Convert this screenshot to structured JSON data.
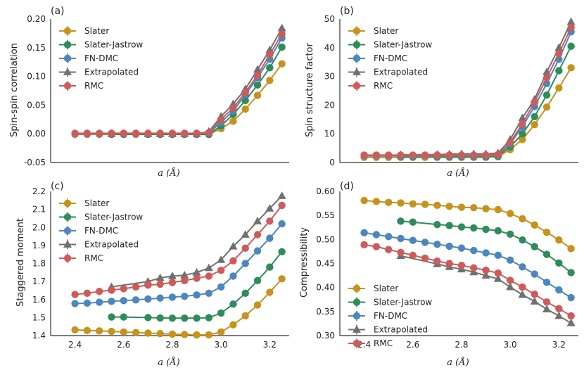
{
  "colors": {
    "Slater": "#c5931c",
    "Slater-Jastrow": "#2e8c5a",
    "FN-DMC": "#4d86be",
    "Extrapolated": "#707070",
    "RMC": "#cf5a5a"
  },
  "chart_data": [
    {
      "id": "a",
      "type": "line",
      "panel_label": "(a)",
      "title": "",
      "xlabel": "a (Å)",
      "ylabel": "Spin-spin correlation",
      "xlim": [
        2.3,
        3.28
      ],
      "ylim": [
        -0.05,
        0.2
      ],
      "xticks": [],
      "yticks": [
        "-0.05",
        "0.00",
        "0.05",
        "0.10",
        "0.15",
        "0.20"
      ],
      "legend": [
        "Slater",
        "Slater-Jastrow",
        "FN-DMC",
        "Extrapolated",
        "RMC"
      ],
      "series": [
        {
          "name": "Slater",
          "x": [
            2.4,
            2.45,
            2.5,
            2.55,
            2.6,
            2.65,
            2.7,
            2.75,
            2.8,
            2.85,
            2.9,
            2.95,
            3.0,
            3.05,
            3.1,
            3.15,
            3.2,
            3.25
          ],
          "y": [
            -0.001,
            -0.001,
            -0.001,
            -0.001,
            -0.001,
            -0.001,
            -0.001,
            -0.001,
            -0.001,
            -0.001,
            -0.001,
            -0.001,
            0.009,
            0.022,
            0.043,
            0.067,
            0.093,
            0.122
          ]
        },
        {
          "name": "Slater-Jastrow",
          "x": [
            2.55,
            2.6,
            2.7,
            2.75,
            2.8,
            2.85,
            2.9,
            2.95,
            3.0,
            3.05,
            3.1,
            3.15,
            3.2,
            3.25
          ],
          "y": [
            -0.001,
            -0.001,
            -0.001,
            -0.001,
            -0.001,
            -0.001,
            -0.001,
            -0.001,
            0.014,
            0.034,
            0.058,
            0.085,
            0.115,
            0.151
          ]
        },
        {
          "name": "FN-DMC",
          "x": [
            2.4,
            2.45,
            2.5,
            2.55,
            2.6,
            2.65,
            2.7,
            2.75,
            2.8,
            2.85,
            2.9,
            2.95,
            3.0,
            3.05,
            3.1,
            3.15,
            3.2,
            3.25
          ],
          "y": [
            0.0,
            0.0,
            0.0,
            0.0,
            0.0,
            0.0,
            0.0,
            0.0,
            0.0,
            0.0,
            0.0,
            0.001,
            0.02,
            0.04,
            0.068,
            0.098,
            0.13,
            0.167
          ]
        },
        {
          "name": "Extrapolated",
          "x": [
            2.55,
            2.7,
            2.75,
            2.8,
            2.85,
            2.9,
            2.95,
            3.0,
            3.05,
            3.1,
            3.15,
            3.2,
            3.25
          ],
          "y": [
            0.0,
            0.0,
            0.0,
            0.0,
            0.0,
            0.0,
            0.004,
            0.03,
            0.052,
            0.078,
            0.112,
            0.146,
            0.184
          ]
        },
        {
          "name": "RMC",
          "x": [
            2.4,
            2.45,
            2.5,
            2.55,
            2.6,
            2.65,
            2.7,
            2.75,
            2.8,
            2.85,
            2.9,
            2.95,
            3.0,
            3.05,
            3.1,
            3.15,
            3.2,
            3.25
          ],
          "y": [
            0.001,
            0.001,
            0.001,
            0.001,
            0.001,
            0.001,
            0.001,
            0.001,
            0.001,
            0.001,
            0.001,
            0.002,
            0.025,
            0.045,
            0.072,
            0.102,
            0.138,
            0.174
          ]
        }
      ]
    },
    {
      "id": "b",
      "type": "line",
      "panel_label": "(b)",
      "title": "",
      "xlabel": "a (Å)",
      "ylabel": "Spin structure factor",
      "xlim": [
        2.3,
        3.28
      ],
      "ylim": [
        0,
        50
      ],
      "xticks": [],
      "yticks": [
        "0",
        "10",
        "20",
        "30",
        "40",
        "50"
      ],
      "legend": [
        "Slater",
        "Slater-Jastrow",
        "FN-DMC",
        "Extrapolated",
        "RMC"
      ],
      "series": [
        {
          "name": "Slater",
          "x": [
            2.4,
            2.45,
            2.5,
            2.55,
            2.6,
            2.65,
            2.7,
            2.75,
            2.8,
            2.85,
            2.9,
            2.95,
            3.0,
            3.05,
            3.1,
            3.15,
            3.2,
            3.25
          ],
          "y": [
            1.8,
            1.8,
            1.8,
            1.8,
            1.8,
            1.8,
            1.8,
            1.8,
            1.8,
            1.8,
            1.8,
            2.0,
            4.5,
            8.0,
            13.2,
            19.3,
            26.0,
            33.0
          ]
        },
        {
          "name": "Slater-Jastrow",
          "x": [
            2.55,
            2.6,
            2.7,
            2.75,
            2.8,
            2.85,
            2.9,
            2.95,
            3.0,
            3.05,
            3.1,
            3.15,
            3.2,
            3.25
          ],
          "y": [
            2.0,
            2.0,
            2.0,
            2.0,
            2.0,
            2.0,
            2.0,
            2.2,
            5.5,
            10.0,
            16.0,
            23.5,
            32.0,
            40.5
          ]
        },
        {
          "name": "FN-DMC",
          "x": [
            2.4,
            2.45,
            2.5,
            2.55,
            2.6,
            2.65,
            2.7,
            2.75,
            2.8,
            2.85,
            2.9,
            2.95,
            3.0,
            3.05,
            3.1,
            3.15,
            3.2,
            3.25
          ],
          "y": [
            2.3,
            2.3,
            2.3,
            2.3,
            2.3,
            2.3,
            2.3,
            2.3,
            2.3,
            2.3,
            2.3,
            2.5,
            6.5,
            12.5,
            19.5,
            27.5,
            36.0,
            45.5
          ]
        },
        {
          "name": "Extrapolated",
          "x": [
            2.55,
            2.7,
            2.75,
            2.8,
            2.85,
            2.9,
            2.95,
            3.0,
            3.05,
            3.1,
            3.15,
            3.2,
            3.25
          ],
          "y": [
            2.7,
            2.8,
            2.9,
            3.0,
            3.0,
            3.0,
            3.3,
            8.0,
            15.5,
            22.0,
            31.5,
            40.0,
            49.0
          ]
        },
        {
          "name": "RMC",
          "x": [
            2.4,
            2.45,
            2.5,
            2.55,
            2.6,
            2.65,
            2.7,
            2.75,
            2.8,
            2.85,
            2.9,
            2.95,
            3.0,
            3.05,
            3.1,
            3.15,
            3.2,
            3.25
          ],
          "y": [
            2.6,
            2.6,
            2.6,
            2.6,
            2.6,
            2.6,
            2.6,
            2.6,
            2.6,
            2.6,
            2.6,
            2.8,
            7.0,
            13.5,
            21.0,
            29.5,
            38.0,
            47.0
          ]
        }
      ]
    },
    {
      "id": "c",
      "type": "line",
      "panel_label": "(c)",
      "title": "",
      "xlabel": "a (Å)",
      "ylabel": "Staggered moment",
      "xlim": [
        2.3,
        3.28
      ],
      "ylim": [
        1.4,
        2.2
      ],
      "xticks": [
        "2.4",
        "2.6",
        "2.8",
        "3.0",
        "3.2"
      ],
      "yticks": [
        "1.4",
        "1.5",
        "1.6",
        "1.7",
        "1.8",
        "1.9",
        "2.0",
        "2.1",
        "2.2"
      ],
      "legend": [
        "Slater",
        "Slater-Jastrow",
        "FN-DMC",
        "Extrapolated",
        "RMC"
      ],
      "series": [
        {
          "name": "Slater",
          "x": [
            2.4,
            2.45,
            2.5,
            2.55,
            2.6,
            2.65,
            2.7,
            2.75,
            2.8,
            2.85,
            2.9,
            2.95,
            3.0,
            3.05,
            3.1,
            3.15,
            3.2,
            3.25
          ],
          "y": [
            1.432,
            1.428,
            1.426,
            1.423,
            1.42,
            1.417,
            1.414,
            1.411,
            1.408,
            1.406,
            1.404,
            1.404,
            1.42,
            1.46,
            1.51,
            1.57,
            1.64,
            1.715
          ]
        },
        {
          "name": "Slater-Jastrow",
          "x": [
            2.55,
            2.6,
            2.7,
            2.75,
            2.8,
            2.85,
            2.9,
            2.95,
            3.0,
            3.05,
            3.1,
            3.15,
            3.2,
            3.25
          ],
          "y": [
            1.503,
            1.503,
            1.5,
            1.498,
            1.497,
            1.497,
            1.497,
            1.499,
            1.525,
            1.575,
            1.635,
            1.705,
            1.78,
            1.865
          ]
        },
        {
          "name": "FN-DMC",
          "x": [
            2.4,
            2.45,
            2.5,
            2.55,
            2.6,
            2.65,
            2.7,
            2.75,
            2.8,
            2.85,
            2.9,
            2.95,
            3.0,
            3.05,
            3.1,
            3.15,
            3.2,
            3.25
          ],
          "y": [
            1.578,
            1.58,
            1.585,
            1.59,
            1.594,
            1.598,
            1.603,
            1.608,
            1.613,
            1.618,
            1.625,
            1.635,
            1.67,
            1.73,
            1.8,
            1.87,
            1.94,
            2.02
          ]
        },
        {
          "name": "Extrapolated",
          "x": [
            2.55,
            2.7,
            2.75,
            2.8,
            2.85,
            2.9,
            2.95,
            3.0,
            3.05,
            3.1,
            3.15,
            3.2,
            3.25
          ],
          "y": [
            1.67,
            1.7,
            1.72,
            1.73,
            1.735,
            1.75,
            1.775,
            1.82,
            1.895,
            1.96,
            2.035,
            2.105,
            2.175
          ]
        },
        {
          "name": "RMC",
          "x": [
            2.4,
            2.45,
            2.5,
            2.55,
            2.6,
            2.65,
            2.7,
            2.75,
            2.8,
            2.85,
            2.9,
            2.95,
            3.0,
            3.05,
            3.1,
            3.15,
            3.2,
            3.25
          ],
          "y": [
            1.628,
            1.635,
            1.645,
            1.652,
            1.66,
            1.67,
            1.68,
            1.685,
            1.695,
            1.705,
            1.718,
            1.73,
            1.762,
            1.815,
            1.885,
            1.96,
            2.035,
            2.122
          ]
        }
      ]
    },
    {
      "id": "d",
      "type": "line",
      "panel_label": "(d)",
      "title": "",
      "xlabel": "a (Å)",
      "ylabel": "Compressibility",
      "xlim": [
        2.3,
        3.28
      ],
      "ylim": [
        0.3,
        0.6
      ],
      "xticks": [
        "2.4",
        "2.6",
        "2.8",
        "3.0",
        "3.2"
      ],
      "yticks": [
        "0.30",
        "0.35",
        "0.40",
        "0.45",
        "0.50",
        "0.55",
        "0.60"
      ],
      "legend": [
        "Slater",
        "Slater-Jastrow",
        "FN-DMC",
        "Extrapolated",
        "RMC"
      ],
      "series": [
        {
          "name": "Slater",
          "x": [
            2.4,
            2.45,
            2.5,
            2.55,
            2.6,
            2.65,
            2.7,
            2.75,
            2.8,
            2.85,
            2.9,
            2.95,
            3.0,
            3.05,
            3.1,
            3.15,
            3.2,
            3.25
          ],
          "y": [
            0.581,
            0.579,
            0.577,
            0.576,
            0.574,
            0.573,
            0.571,
            0.569,
            0.567,
            0.566,
            0.564,
            0.562,
            0.554,
            0.543,
            0.53,
            0.515,
            0.499,
            0.481
          ]
        },
        {
          "name": "Slater-Jastrow",
          "x": [
            2.55,
            2.6,
            2.7,
            2.75,
            2.8,
            2.85,
            2.9,
            2.95,
            3.0,
            3.05,
            3.1,
            3.15,
            3.2,
            3.25
          ],
          "y": [
            0.538,
            0.536,
            0.531,
            0.529,
            0.526,
            0.524,
            0.521,
            0.518,
            0.511,
            0.499,
            0.485,
            0.469,
            0.451,
            0.431
          ]
        },
        {
          "name": "FN-DMC",
          "x": [
            2.4,
            2.45,
            2.5,
            2.55,
            2.6,
            2.65,
            2.7,
            2.75,
            2.8,
            2.85,
            2.9,
            2.95,
            3.0,
            3.05,
            3.1,
            3.15,
            3.2,
            3.25
          ],
          "y": [
            0.514,
            0.51,
            0.506,
            0.502,
            0.498,
            0.494,
            0.49,
            0.486,
            0.482,
            0.477,
            0.472,
            0.467,
            0.457,
            0.443,
            0.428,
            0.411,
            0.395,
            0.379
          ]
        },
        {
          "name": "Extrapolated",
          "x": [
            2.55,
            2.7,
            2.75,
            2.8,
            2.85,
            2.9,
            2.95,
            3.0,
            3.05,
            3.1,
            3.15,
            3.2,
            3.25
          ],
          "y": [
            0.466,
            0.449,
            0.443,
            0.438,
            0.432,
            0.425,
            0.418,
            0.401,
            0.385,
            0.371,
            0.355,
            0.341,
            0.326
          ]
        },
        {
          "name": "RMC",
          "x": [
            2.4,
            2.45,
            2.5,
            2.55,
            2.6,
            2.65,
            2.7,
            2.75,
            2.8,
            2.85,
            2.9,
            2.95,
            3.0,
            3.05,
            3.1,
            3.15,
            3.2,
            3.25
          ],
          "y": [
            0.489,
            0.485,
            0.479,
            0.473,
            0.467,
            0.461,
            0.455,
            0.45,
            0.446,
            0.441,
            0.436,
            0.43,
            0.415,
            0.401,
            0.386,
            0.37,
            0.356,
            0.341
          ]
        }
      ]
    }
  ]
}
